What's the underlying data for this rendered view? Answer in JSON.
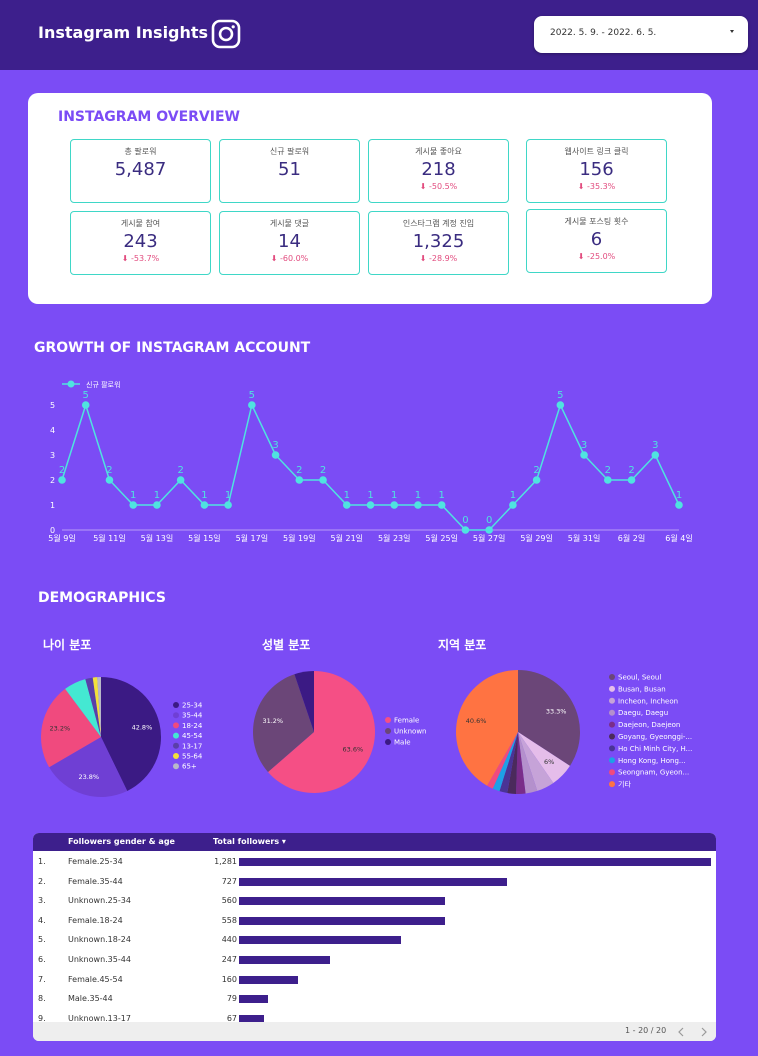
{
  "header": {
    "title": "Instagram Insights",
    "date_range": "2022. 5. 9. - 2022. 6. 5."
  },
  "overview": {
    "title": "INSTAGRAM OVERVIEW",
    "kpis": [
      {
        "label": "총 팔로워",
        "value": "5,487",
        "delta": ""
      },
      {
        "label": "신규 팔로워",
        "value": "51",
        "delta": ""
      },
      {
        "label": "게시물 좋아요",
        "value": "218",
        "delta": "⬇ -50.5%"
      },
      {
        "label": "웹사이트 링크 클릭",
        "value": "156",
        "delta": "⬇ -35.3%"
      },
      {
        "label": "게시물 참여",
        "value": "243",
        "delta": "⬇ -53.7%"
      },
      {
        "label": "게시물 댓글",
        "value": "14",
        "delta": "⬇ -60.0%"
      },
      {
        "label": "인스타그램 계정 진입",
        "value": "1,325",
        "delta": "⬇ -28.9%"
      },
      {
        "label": "게시물 포스팅 횟수",
        "value": "6",
        "delta": "⬇ -25.0%"
      }
    ]
  },
  "growth": {
    "title": "GROWTH OF INSTAGRAM ACCOUNT"
  },
  "demographics": {
    "title": "DEMOGRAPHICS"
  },
  "chart_data": [
    {
      "type": "line",
      "title": "GROWTH OF INSTAGRAM ACCOUNT",
      "series": [
        {
          "name": "신규 팔로워",
          "values": [
            2,
            5,
            2,
            1,
            1,
            2,
            1,
            1,
            5,
            3,
            2,
            2,
            1,
            1,
            1,
            1,
            1,
            0,
            0,
            1,
            2,
            5,
            3,
            2,
            2,
            3,
            1
          ]
        }
      ],
      "x_ticks": [
        "5월 9일",
        "5월 11일",
        "5월 13일",
        "5월 15일",
        "5월 17일",
        "5월 19일",
        "5월 21일",
        "5월 23일",
        "5월 25일",
        "5월 27일",
        "5월 29일",
        "5월 31일",
        "6월 2일",
        "6월 4일"
      ],
      "y_ticks": [
        "0",
        "1",
        "2",
        "3",
        "4",
        "5"
      ],
      "ylim": [
        0,
        5
      ],
      "colors": [
        "#4fe3e0"
      ]
    },
    {
      "type": "pie",
      "title": "나이 분포",
      "labels": [
        "25-34",
        "35-44",
        "18-24",
        "45-54",
        "13-17",
        "55-64",
        "65+"
      ],
      "values": [
        42.8,
        23.8,
        23.2,
        6.0,
        2.0,
        1.2,
        1.0
      ],
      "slice_labels": [
        "42.8%",
        "23.8%",
        "23.2%",
        "",
        "",
        "",
        ""
      ],
      "colors": [
        "#3b1a84",
        "#6f3fd4",
        "#f04a7e",
        "#44e8d2",
        "#5a3fa8",
        "#f2e13a",
        "#b8b8c8"
      ]
    },
    {
      "type": "pie",
      "title": "성별 분포",
      "labels": [
        "Female",
        "Unknown",
        "Male"
      ],
      "values": [
        63.6,
        31.2,
        5.2
      ],
      "slice_labels": [
        "63.6%",
        "31.2%",
        ""
      ],
      "colors": [
        "#f54f85",
        "#6b4678",
        "#3b1a84"
      ]
    },
    {
      "type": "pie",
      "title": "지역 분포",
      "labels": [
        "Seoul, Seoul",
        "Busan, Busan",
        "Incheon, Incheon",
        "Daegu, Daegu",
        "Daejeon, Daejeon",
        "Goyang, Gyeonggi-...",
        "Ho Chi Minh City, H...",
        "Hong Kong, Hong...",
        "Seongnam, Gyeon...",
        "기타"
      ],
      "values": [
        33.3,
        6.0,
        4.5,
        3.0,
        2.4,
        2.2,
        2.0,
        1.8,
        1.6,
        40.6
      ],
      "slice_labels": [
        "33.3%",
        "6%",
        "",
        "",
        "",
        "",
        "",
        "",
        "",
        "40.6%"
      ],
      "colors": [
        "#6b4678",
        "#e5bdea",
        "#c6a3d8",
        "#b490cc",
        "#7a2d8a",
        "#4b2a5c",
        "#4a3396",
        "#1ea0e6",
        "#f04a7e",
        "#ff7342"
      ]
    },
    {
      "type": "bar",
      "orientation": "horizontal",
      "title": "Followers gender & age",
      "columns": [
        "Followers gender & age",
        "Total followers ▾"
      ],
      "categories": [
        "Female.25-34",
        "Female.35-44",
        "Unknown.25-34",
        "Female.18-24",
        "Unknown.18-24",
        "Unknown.35-44",
        "Female.45-54",
        "Male.35-44",
        "Unknown.13-17"
      ],
      "rank_labels": [
        "1.",
        "2.",
        "3.",
        "4.",
        "5.",
        "6.",
        "7.",
        "8.",
        "9."
      ],
      "values": [
        1281,
        727,
        560,
        558,
        440,
        247,
        160,
        79,
        67
      ],
      "value_labels": [
        "1,281",
        "727",
        "560",
        "558",
        "440",
        "247",
        "160",
        "79",
        "67"
      ],
      "pagination": "1 - 20 / 20",
      "colors": [
        "#3d1f8c"
      ]
    }
  ]
}
